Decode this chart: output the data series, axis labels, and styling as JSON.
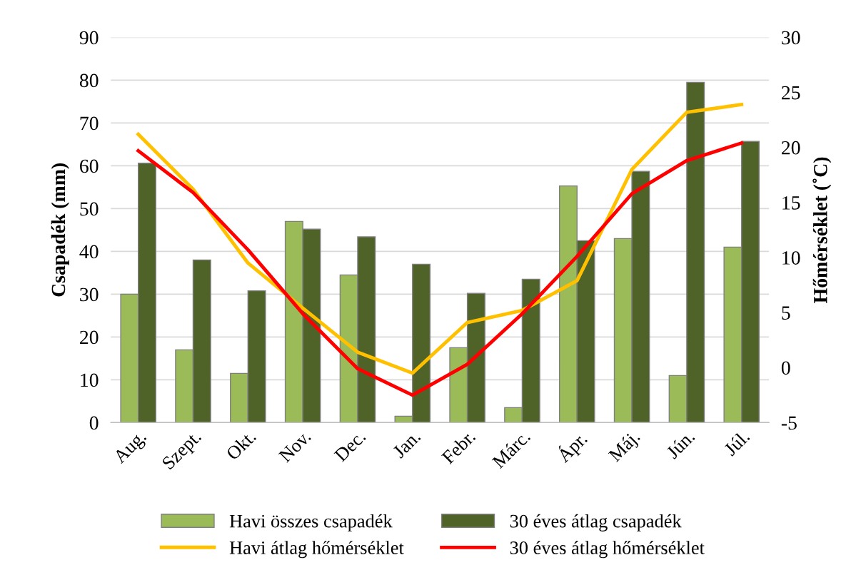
{
  "chart_data": {
    "type": "bar",
    "ylabel": "Csapadék (mm)",
    "y2label": "Hőmérséklet (˚C)",
    "categories": [
      "Aug.",
      "Szept.",
      "Okt.",
      "Nov.",
      "Dec.",
      "Jan.",
      "Febr.",
      "Márc.",
      "Ápr.",
      "Máj.",
      "Jún.",
      "Júl."
    ],
    "series": [
      {
        "name": "Havi összes csapadék",
        "color": "#9bbb59",
        "values": [
          30,
          17,
          11.5,
          47,
          34.5,
          1.5,
          17.5,
          3.5,
          55.3,
          43,
          11,
          41
        ]
      },
      {
        "name": "30 éves átlag csapadék",
        "color": "#4f6228",
        "values": [
          60.6,
          38,
          30.8,
          45.2,
          43.4,
          37,
          30.2,
          33.5,
          42.5,
          58.7,
          79.5,
          65.7
        ]
      },
      {
        "name": "Havi átlag hőmérséklet",
        "type": "line",
        "axis": "y2",
        "color": "#ffc000",
        "values": [
          21.2,
          16.2,
          9.5,
          5.4,
          1.4,
          -0.5,
          4.1,
          5.2,
          7.9,
          18,
          23.2,
          23.9
        ]
      },
      {
        "name": "30 éves átlag hőmérséklet",
        "type": "line",
        "axis": "y2",
        "color": "#ff0000",
        "values": [
          19.7,
          15.9,
          10.7,
          4.9,
          -0.1,
          -2.5,
          0.3,
          4.9,
          10.1,
          15.8,
          18.8,
          20.4
        ]
      }
    ],
    "ylim": [
      0,
      90
    ],
    "yticks": [
      0,
      10,
      20,
      30,
      40,
      50,
      60,
      70,
      80,
      90
    ],
    "y2lim": [
      -5,
      30
    ],
    "y2ticks": [
      -5,
      0,
      5,
      10,
      15,
      20,
      25,
      30
    ],
    "grid": "y",
    "legend": "bottom",
    "marker": "none",
    "line_style": "solid"
  }
}
